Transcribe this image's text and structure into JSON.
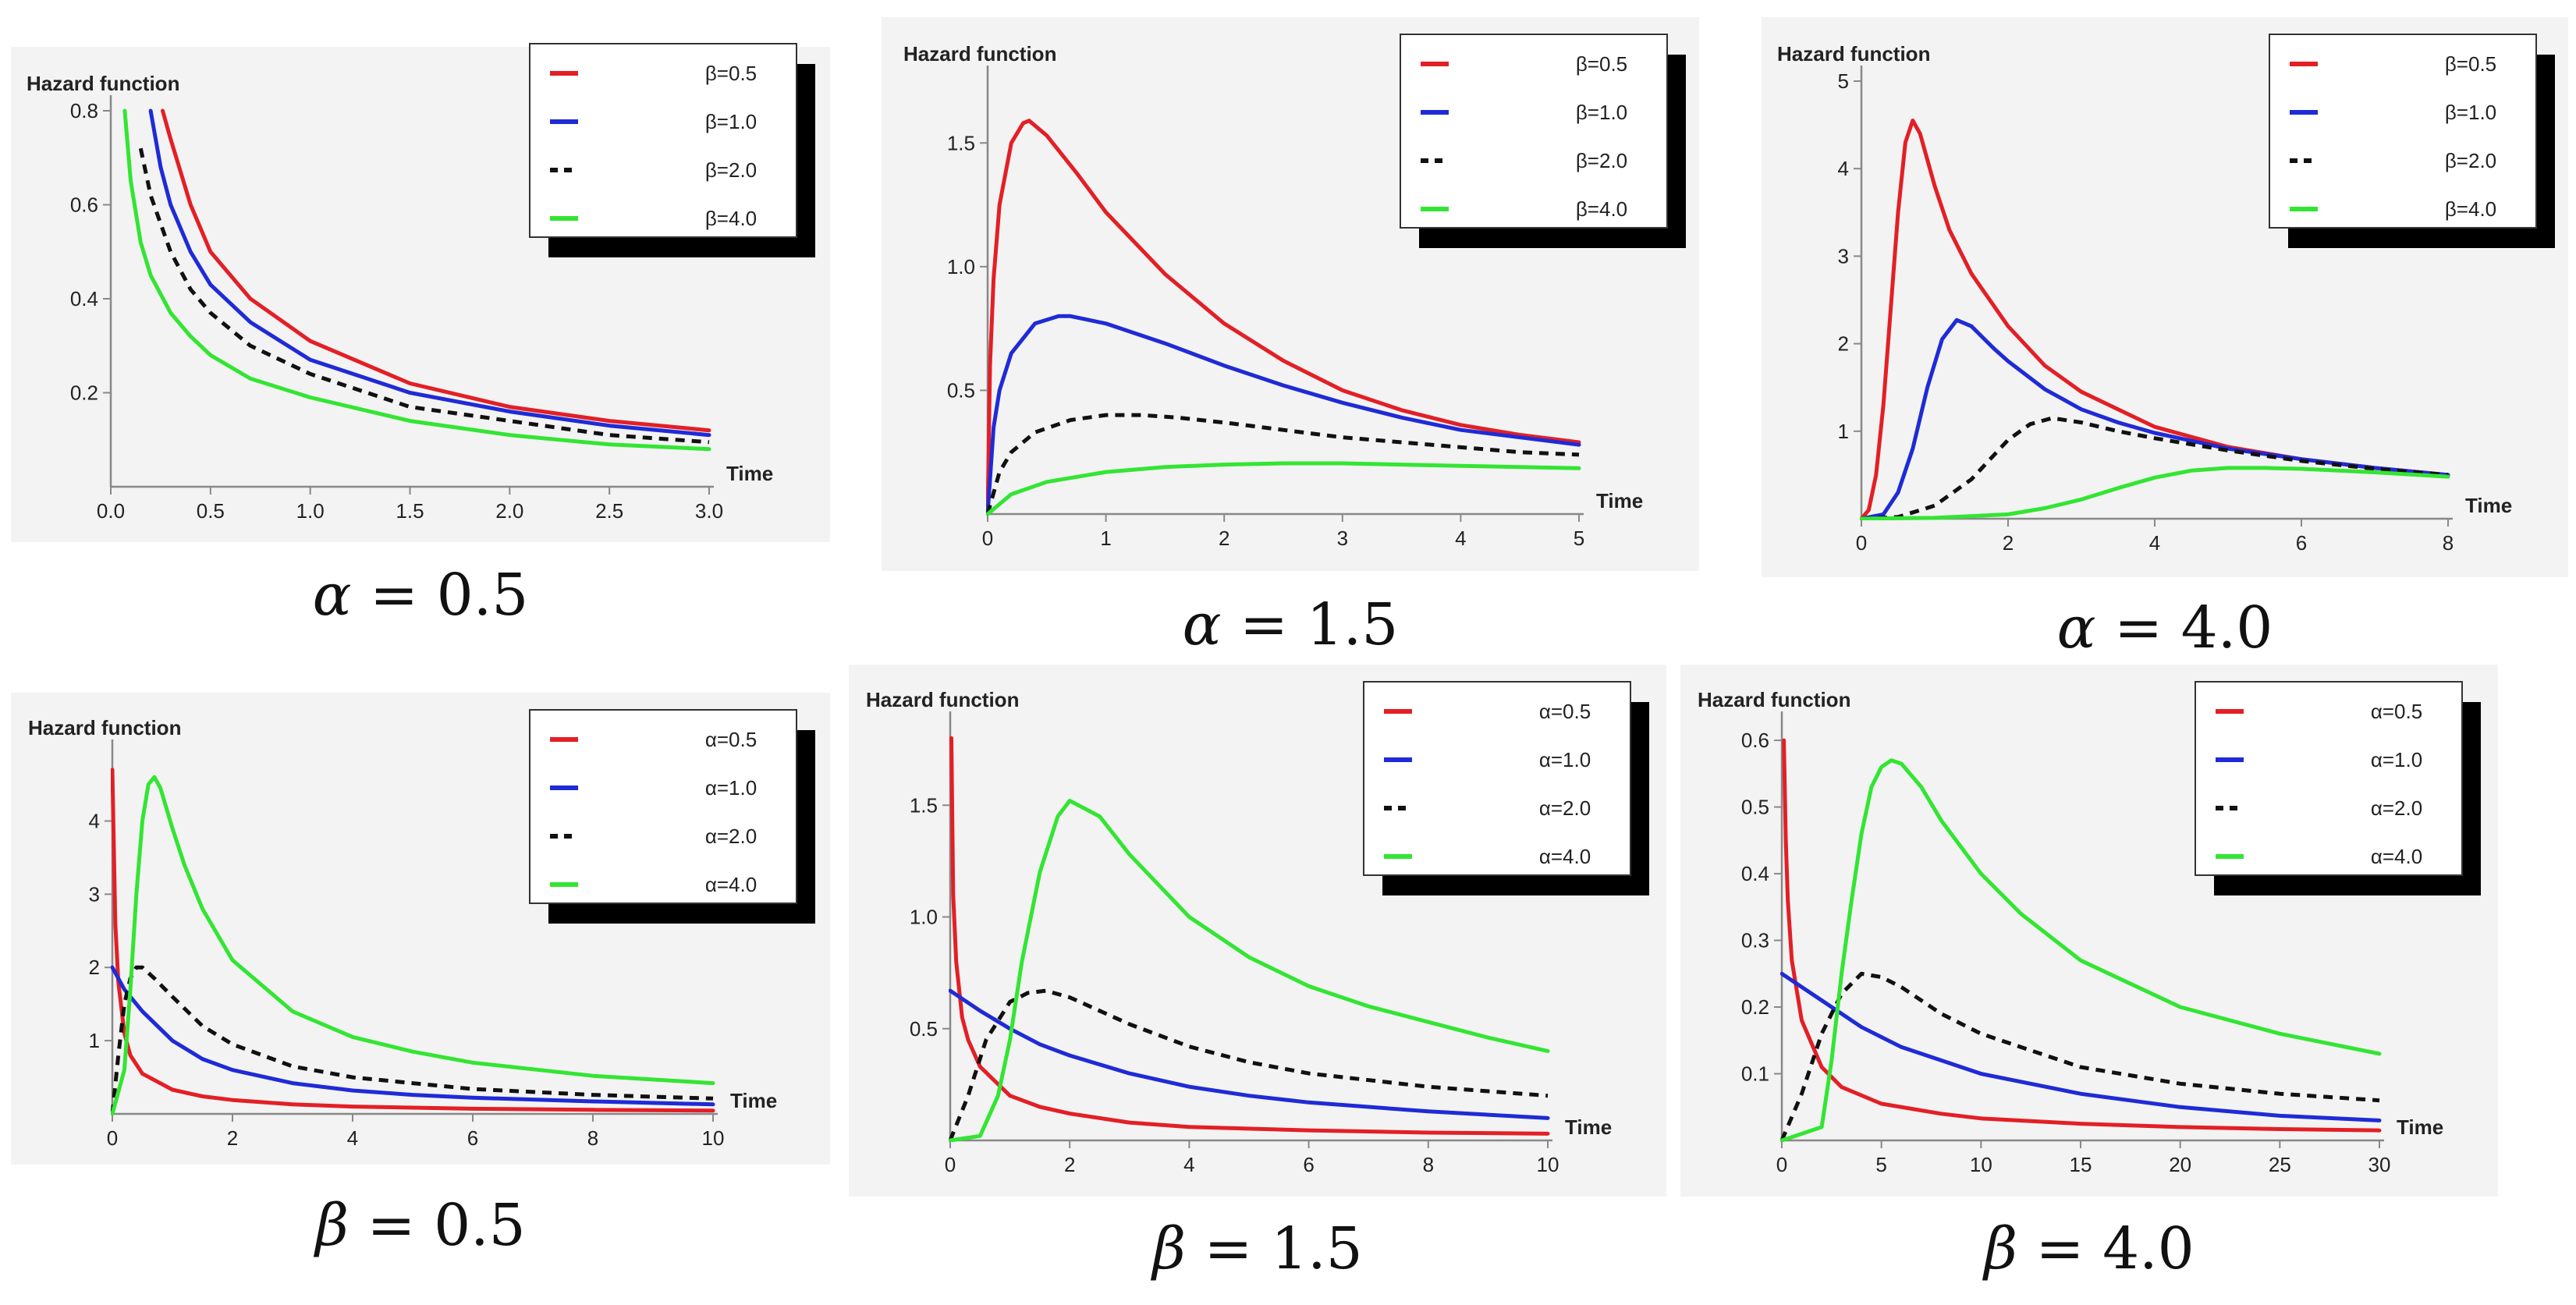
{
  "colors": {
    "red": "#e31f26",
    "blue": "#1f2bd6",
    "black": "#111111",
    "green": "#33e533",
    "axis": "#888888"
  },
  "chart_data": [
    {
      "type": "line",
      "title": "Hazard function",
      "ylabel": "Hazard function",
      "xlabel": "Time",
      "caption": {
        "symbol": "α",
        "value": "= 0.5"
      },
      "xlim": [
        0,
        3
      ],
      "ylim": [
        0,
        0.8
      ],
      "xticks": [
        0.0,
        0.5,
        1.0,
        1.5,
        2.0,
        2.5,
        3.0
      ],
      "xtick_labels": [
        "0.0",
        "0.5",
        "1.0",
        "1.5",
        "2.0",
        "2.5",
        "3.0"
      ],
      "yticks": [
        0.2,
        0.4,
        0.6,
        0.8
      ],
      "ytick_labels": [
        "0.2",
        "0.4",
        "0.6",
        "0.8"
      ],
      "series": [
        {
          "name": "β=0.5",
          "color": "red",
          "dash": false,
          "x": [
            0.26,
            0.3,
            0.4,
            0.5,
            0.7,
            1.0,
            1.5,
            2.0,
            2.5,
            3.0
          ],
          "y": [
            0.8,
            0.74,
            0.6,
            0.5,
            0.4,
            0.31,
            0.22,
            0.17,
            0.14,
            0.12
          ]
        },
        {
          "name": "β=1.0",
          "color": "blue",
          "dash": false,
          "x": [
            0.2,
            0.25,
            0.3,
            0.4,
            0.5,
            0.7,
            1.0,
            1.5,
            2.0,
            2.5,
            3.0
          ],
          "y": [
            0.8,
            0.68,
            0.6,
            0.5,
            0.43,
            0.35,
            0.27,
            0.2,
            0.16,
            0.13,
            0.11
          ]
        },
        {
          "name": "β=2.0",
          "color": "black",
          "dash": true,
          "x": [
            0.15,
            0.2,
            0.3,
            0.4,
            0.5,
            0.7,
            1.0,
            1.5,
            2.0,
            2.5,
            3.0
          ],
          "y": [
            0.72,
            0.62,
            0.5,
            0.42,
            0.37,
            0.3,
            0.24,
            0.17,
            0.14,
            0.11,
            0.095
          ]
        },
        {
          "name": "β=4.0",
          "color": "green",
          "dash": false,
          "x": [
            0.07,
            0.1,
            0.15,
            0.2,
            0.3,
            0.4,
            0.5,
            0.7,
            1.0,
            1.5,
            2.0,
            2.5,
            3.0
          ],
          "y": [
            0.8,
            0.65,
            0.52,
            0.45,
            0.37,
            0.32,
            0.28,
            0.23,
            0.19,
            0.14,
            0.11,
            0.09,
            0.08
          ]
        }
      ]
    },
    {
      "type": "line",
      "title": "Hazard function",
      "ylabel": "Hazard function",
      "xlabel": "Time",
      "caption": {
        "symbol": "α",
        "value": "= 1.5"
      },
      "xlim": [
        0,
        5
      ],
      "ylim": [
        0,
        1.75
      ],
      "xticks": [
        0,
        1,
        2,
        3,
        4,
        5
      ],
      "xtick_labels": [
        "0",
        "1",
        "2",
        "3",
        "4",
        "5"
      ],
      "yticks": [
        0.5,
        1.0,
        1.5
      ],
      "ytick_labels": [
        "0.5",
        "1.0",
        "1.5"
      ],
      "series": [
        {
          "name": "β=0.5",
          "color": "red",
          "dash": false,
          "x": [
            0,
            0.02,
            0.05,
            0.1,
            0.2,
            0.3,
            0.35,
            0.5,
            0.75,
            1,
            1.5,
            2,
            2.5,
            3,
            3.5,
            4,
            4.5,
            5
          ],
          "y": [
            0,
            0.6,
            0.95,
            1.25,
            1.5,
            1.58,
            1.59,
            1.53,
            1.38,
            1.22,
            0.97,
            0.77,
            0.62,
            0.5,
            0.42,
            0.36,
            0.32,
            0.29
          ]
        },
        {
          "name": "β=1.0",
          "color": "blue",
          "dash": false,
          "x": [
            0,
            0.05,
            0.1,
            0.2,
            0.4,
            0.6,
            0.7,
            1,
            1.5,
            2,
            2.5,
            3,
            3.5,
            4,
            4.5,
            5
          ],
          "y": [
            0,
            0.35,
            0.5,
            0.65,
            0.77,
            0.8,
            0.8,
            0.77,
            0.69,
            0.6,
            0.52,
            0.45,
            0.39,
            0.34,
            0.31,
            0.28
          ]
        },
        {
          "name": "β=2.0",
          "color": "black",
          "dash": true,
          "x": [
            0,
            0.1,
            0.2,
            0.4,
            0.7,
            1,
            1.3,
            1.6,
            2,
            2.5,
            3,
            3.5,
            4,
            4.5,
            5
          ],
          "y": [
            0,
            0.17,
            0.25,
            0.33,
            0.38,
            0.4,
            0.4,
            0.39,
            0.37,
            0.34,
            0.31,
            0.29,
            0.27,
            0.25,
            0.24
          ]
        },
        {
          "name": "β=4.0",
          "color": "green",
          "dash": false,
          "x": [
            0,
            0.2,
            0.5,
            1,
            1.5,
            2,
            2.5,
            3,
            3.5,
            4,
            4.5,
            5
          ],
          "y": [
            0,
            0.08,
            0.13,
            0.17,
            0.19,
            0.2,
            0.205,
            0.205,
            0.2,
            0.195,
            0.19,
            0.185
          ]
        }
      ]
    },
    {
      "type": "line",
      "title": "Hazard function",
      "ylabel": "Hazard function",
      "xlabel": "Time",
      "caption": {
        "symbol": "α",
        "value": "= 4.0"
      },
      "xlim": [
        0,
        8
      ],
      "ylim": [
        0,
        5
      ],
      "xticks": [
        0,
        2,
        4,
        6,
        8
      ],
      "xtick_labels": [
        "0",
        "2",
        "4",
        "6",
        "8"
      ],
      "yticks": [
        1,
        2,
        3,
        4,
        5
      ],
      "ytick_labels": [
        "1",
        "2",
        "3",
        "4",
        "5"
      ],
      "series": [
        {
          "name": "β=0.5",
          "color": "red",
          "dash": false,
          "x": [
            0,
            0.1,
            0.2,
            0.3,
            0.4,
            0.5,
            0.6,
            0.7,
            0.8,
            1,
            1.2,
            1.5,
            2,
            2.5,
            3,
            4,
            5,
            6,
            7,
            8
          ],
          "y": [
            0,
            0.1,
            0.5,
            1.3,
            2.4,
            3.5,
            4.3,
            4.55,
            4.4,
            3.8,
            3.3,
            2.8,
            2.2,
            1.75,
            1.45,
            1.05,
            0.82,
            0.68,
            0.58,
            0.5
          ]
        },
        {
          "name": "β=1.0",
          "color": "blue",
          "dash": false,
          "x": [
            0,
            0.3,
            0.5,
            0.7,
            0.9,
            1.1,
            1.3,
            1.5,
            1.8,
            2,
            2.5,
            3,
            3.5,
            4,
            5,
            6,
            7,
            8
          ],
          "y": [
            0,
            0.05,
            0.3,
            0.8,
            1.5,
            2.05,
            2.27,
            2.2,
            1.95,
            1.8,
            1.48,
            1.25,
            1.1,
            0.98,
            0.8,
            0.68,
            0.58,
            0.5
          ]
        },
        {
          "name": "β=2.0",
          "color": "black",
          "dash": true,
          "x": [
            0,
            0.5,
            1,
            1.5,
            2,
            2.3,
            2.6,
            3,
            3.5,
            4,
            5,
            6,
            7,
            8
          ],
          "y": [
            0,
            0.02,
            0.15,
            0.45,
            0.9,
            1.08,
            1.15,
            1.1,
            1.0,
            0.92,
            0.78,
            0.66,
            0.57,
            0.5
          ]
        },
        {
          "name": "β=4.0",
          "color": "green",
          "dash": false,
          "x": [
            0,
            1,
            2,
            2.5,
            3,
            3.5,
            4,
            4.5,
            5,
            5.5,
            6,
            7,
            8
          ],
          "y": [
            0,
            0.01,
            0.05,
            0.12,
            0.22,
            0.35,
            0.47,
            0.55,
            0.58,
            0.58,
            0.57,
            0.53,
            0.48
          ]
        }
      ]
    },
    {
      "type": "line",
      "title": "Hazard function",
      "ylabel": "Hazard function",
      "xlabel": "Time",
      "caption": {
        "symbol": "β",
        "value": "= 0.5"
      },
      "xlim": [
        0,
        10
      ],
      "ylim": [
        0,
        4.9
      ],
      "xticks": [
        0,
        2,
        4,
        6,
        8,
        10
      ],
      "xtick_labels": [
        "0",
        "2",
        "4",
        "6",
        "8",
        "10"
      ],
      "yticks": [
        1,
        2,
        3,
        4
      ],
      "ytick_labels": [
        "1",
        "2",
        "3",
        "4"
      ],
      "series": [
        {
          "name": "α=0.5",
          "color": "red",
          "dash": false,
          "x": [
            0,
            0.05,
            0.1,
            0.2,
            0.3,
            0.5,
            1,
            1.5,
            2,
            3,
            4,
            6,
            8,
            10
          ],
          "y": [
            4.7,
            2.6,
            1.8,
            1.1,
            0.8,
            0.55,
            0.33,
            0.24,
            0.19,
            0.13,
            0.1,
            0.07,
            0.055,
            0.045
          ]
        },
        {
          "name": "α=1.0",
          "color": "blue",
          "dash": false,
          "x": [
            0,
            0.2,
            0.5,
            1,
            1.5,
            2,
            3,
            4,
            5,
            6,
            8,
            10
          ],
          "y": [
            2.0,
            1.7,
            1.4,
            1.0,
            0.75,
            0.6,
            0.42,
            0.32,
            0.26,
            0.22,
            0.17,
            0.13
          ]
        },
        {
          "name": "α=2.0",
          "color": "black",
          "dash": true,
          "x": [
            0,
            0.1,
            0.2,
            0.3,
            0.4,
            0.5,
            0.7,
            1,
            1.5,
            2,
            3,
            4,
            6,
            8,
            10
          ],
          "y": [
            0,
            0.8,
            1.5,
            1.85,
            2.0,
            2.0,
            1.85,
            1.6,
            1.2,
            0.95,
            0.65,
            0.5,
            0.34,
            0.26,
            0.21
          ]
        },
        {
          "name": "α=4.0",
          "color": "green",
          "dash": false,
          "x": [
            0,
            0.2,
            0.3,
            0.4,
            0.5,
            0.6,
            0.7,
            0.8,
            1,
            1.2,
            1.5,
            2,
            3,
            4,
            5,
            6,
            8,
            10
          ],
          "y": [
            0,
            0.6,
            1.7,
            3.0,
            4.0,
            4.5,
            4.6,
            4.45,
            3.9,
            3.4,
            2.8,
            2.1,
            1.4,
            1.05,
            0.85,
            0.7,
            0.52,
            0.42
          ]
        }
      ]
    },
    {
      "type": "line",
      "title": "Hazard function",
      "ylabel": "Hazard function",
      "xlabel": "Time",
      "caption": {
        "symbol": "β",
        "value": "= 1.5"
      },
      "xlim": [
        0,
        10
      ],
      "ylim": [
        0,
        1.85
      ],
      "xticks": [
        0,
        2,
        4,
        6,
        8,
        10
      ],
      "xtick_labels": [
        "0",
        "2",
        "4",
        "6",
        "8",
        "10"
      ],
      "yticks": [
        0.5,
        1.0,
        1.5
      ],
      "ytick_labels": [
        "0.5",
        "1.0",
        "1.5"
      ],
      "series": [
        {
          "name": "α=0.5",
          "color": "red",
          "dash": false,
          "x": [
            0.02,
            0.05,
            0.1,
            0.2,
            0.3,
            0.5,
            1,
            1.5,
            2,
            3,
            4,
            6,
            8,
            10
          ],
          "y": [
            1.8,
            1.1,
            0.8,
            0.55,
            0.45,
            0.33,
            0.2,
            0.15,
            0.12,
            0.08,
            0.06,
            0.045,
            0.035,
            0.03
          ]
        },
        {
          "name": "α=1.0",
          "color": "blue",
          "dash": false,
          "x": [
            0,
            0.5,
            1,
            1.5,
            2,
            3,
            4,
            5,
            6,
            8,
            10
          ],
          "y": [
            0.67,
            0.58,
            0.5,
            0.43,
            0.38,
            0.3,
            0.24,
            0.2,
            0.17,
            0.13,
            0.1
          ]
        },
        {
          "name": "α=2.0",
          "color": "black",
          "dash": true,
          "x": [
            0,
            0.3,
            0.6,
            1,
            1.3,
            1.6,
            2,
            2.5,
            3,
            4,
            5,
            6,
            8,
            10
          ],
          "y": [
            0,
            0.2,
            0.45,
            0.62,
            0.66,
            0.67,
            0.64,
            0.58,
            0.52,
            0.42,
            0.35,
            0.3,
            0.24,
            0.2
          ]
        },
        {
          "name": "α=4.0",
          "color": "green",
          "dash": false,
          "x": [
            0,
            0.5,
            0.8,
            1,
            1.2,
            1.5,
            1.8,
            2,
            2.5,
            3,
            4,
            5,
            6,
            7,
            8,
            9,
            10
          ],
          "y": [
            0,
            0.02,
            0.2,
            0.45,
            0.8,
            1.2,
            1.45,
            1.52,
            1.45,
            1.28,
            1.0,
            0.82,
            0.69,
            0.6,
            0.53,
            0.46,
            0.4
          ]
        }
      ]
    },
    {
      "type": "line",
      "title": "Hazard function",
      "ylabel": "Hazard function",
      "xlabel": "Time",
      "caption": {
        "symbol": "β",
        "value": "= 4.0"
      },
      "xlim": [
        0,
        30
      ],
      "ylim": [
        0,
        0.62
      ],
      "xticks": [
        0,
        5,
        10,
        15,
        20,
        25,
        30
      ],
      "xtick_labels": [
        "0",
        "5",
        "10",
        "15",
        "20",
        "25",
        "30"
      ],
      "yticks": [
        0.1,
        0.2,
        0.3,
        0.4,
        0.5,
        0.6
      ],
      "ytick_labels": [
        "0.1",
        "0.2",
        "0.3",
        "0.4",
        "0.5",
        "0.6"
      ],
      "series": [
        {
          "name": "α=0.5",
          "color": "red",
          "dash": false,
          "x": [
            0.1,
            0.2,
            0.3,
            0.5,
            1,
            2,
            3,
            5,
            8,
            10,
            15,
            20,
            25,
            30
          ],
          "y": [
            0.6,
            0.45,
            0.36,
            0.27,
            0.18,
            0.11,
            0.08,
            0.055,
            0.04,
            0.033,
            0.025,
            0.02,
            0.017,
            0.015
          ]
        },
        {
          "name": "α=1.0",
          "color": "blue",
          "dash": false,
          "x": [
            0,
            2,
            4,
            6,
            8,
            10,
            15,
            20,
            25,
            30
          ],
          "y": [
            0.25,
            0.21,
            0.17,
            0.14,
            0.12,
            0.1,
            0.07,
            0.05,
            0.037,
            0.03
          ]
        },
        {
          "name": "α=2.0",
          "color": "black",
          "dash": true,
          "x": [
            0,
            1,
            2,
            3,
            4,
            5,
            6,
            8,
            10,
            15,
            20,
            25,
            30
          ],
          "y": [
            0,
            0.07,
            0.16,
            0.22,
            0.25,
            0.245,
            0.23,
            0.19,
            0.16,
            0.11,
            0.085,
            0.07,
            0.06
          ]
        },
        {
          "name": "α=4.0",
          "color": "green",
          "dash": false,
          "x": [
            0,
            2,
            2.5,
            3,
            3.5,
            4,
            4.5,
            5,
            5.5,
            6,
            7,
            8,
            10,
            12,
            15,
            20,
            25,
            30
          ],
          "y": [
            0,
            0.02,
            0.12,
            0.25,
            0.36,
            0.46,
            0.53,
            0.56,
            0.57,
            0.565,
            0.53,
            0.48,
            0.4,
            0.34,
            0.27,
            0.2,
            0.16,
            0.13
          ]
        }
      ]
    }
  ]
}
